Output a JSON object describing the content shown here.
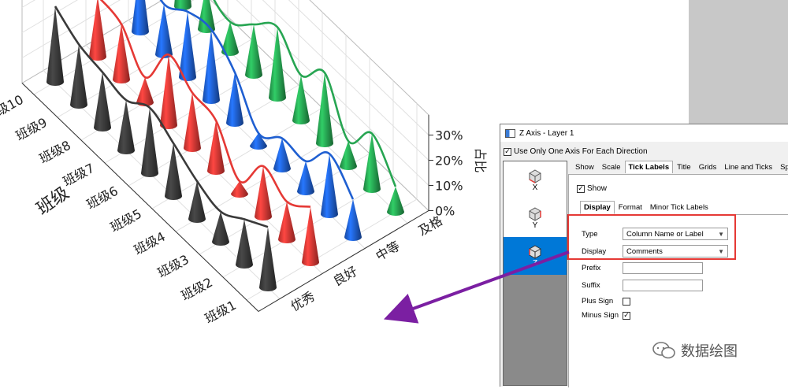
{
  "chart_data": {
    "type": "3d-cone-plot",
    "z_ticks": [
      "0%",
      "10%",
      "20%",
      "30%"
    ],
    "z_axis_label": "占比",
    "x_axis_title": "班级",
    "x_categories": [
      "班级1",
      "班级2",
      "班级3",
      "班级4",
      "班级5",
      "班级6",
      "班级7",
      "班级8",
      "班级9",
      "班级10"
    ],
    "y_categories": [
      "优秀",
      "良好",
      "中等",
      "及格"
    ],
    "series_colors": {
      "优秀": "#3a3a3a",
      "良好": "#e53935",
      "中等": "#1f5fd1",
      "及格": "#27a552"
    },
    "series": [
      {
        "name": "优秀",
        "values": [
          24,
          18,
          12,
          15,
          21,
          26,
          20,
          22,
          24,
          30
        ]
      },
      {
        "name": "良好",
        "values": [
          22,
          15,
          20,
          5,
          20,
          22,
          28,
          10,
          22,
          24
        ]
      },
      {
        "name": "中等",
        "values": [
          15,
          24,
          12,
          12,
          5,
          20,
          28,
          26,
          20,
          28
        ]
      },
      {
        "name": "及格",
        "values": [
          10,
          22,
          10,
          28,
          18,
          28,
          20,
          12,
          18,
          38
        ]
      }
    ]
  },
  "dialog": {
    "title": "Z Axis - Layer 1",
    "use_one_axis": "Use Only One Axis For Each Direction",
    "side_items": [
      "X",
      "Y",
      "Z"
    ],
    "tabs": [
      "Show",
      "Scale",
      "Tick Labels",
      "Title",
      "Grids",
      "Line and Ticks",
      "Spec"
    ],
    "show_label": "Show",
    "subtabs": [
      "Display",
      "Format",
      "Minor Tick Labels"
    ],
    "type_label": "Type",
    "type_value": "Column Name or Label",
    "display_label": "Display",
    "display_value": "Comments",
    "prefix_label": "Prefix",
    "suffix_label": "Suffix",
    "plus_sign_label": "Plus Sign",
    "minus_sign_label": "Minus Sign"
  },
  "watermark": "数据绘图"
}
